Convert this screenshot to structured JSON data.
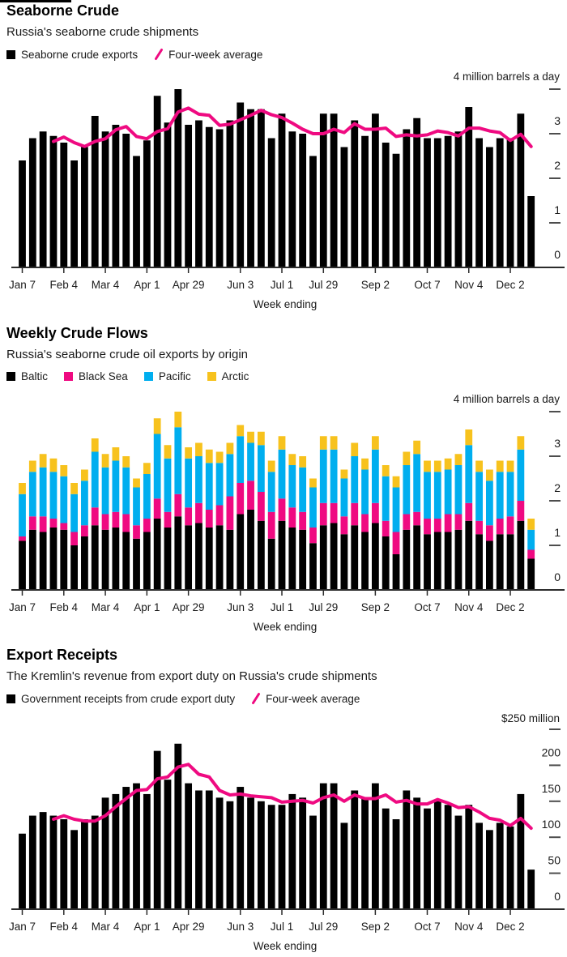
{
  "colors": {
    "bar_black": "#000000",
    "pink": "#ef0a81",
    "blue": "#00aeef",
    "yellow": "#f7c21d",
    "axis_line": "#2b2b2b",
    "tick_dash": "#4d4d4d",
    "text": "#1a1a1a"
  },
  "xaxis": {
    "title": "Week ending",
    "n_weeks": 50,
    "tick_labels": [
      {
        "week": 1,
        "label": "Jan 7"
      },
      {
        "week": 5,
        "label": "Feb 4"
      },
      {
        "week": 9,
        "label": "Mar 4"
      },
      {
        "week": 13,
        "label": "Apr 1"
      },
      {
        "week": 17,
        "label": "Apr 29"
      },
      {
        "week": 22,
        "label": "Jun 3"
      },
      {
        "week": 26,
        "label": "Jul 1"
      },
      {
        "week": 30,
        "label": "Jul 29"
      },
      {
        "week": 35,
        "label": "Sep 2"
      },
      {
        "week": 40,
        "label": "Oct 7"
      },
      {
        "week": 44,
        "label": "Nov 4"
      },
      {
        "week": 48,
        "label": "Dec 2"
      }
    ]
  },
  "chart_data": [
    {
      "id": "seaborne-crude",
      "type": "bar",
      "title": "Seaborne Crude",
      "subtitle": "Russia's seaborne crude shipments",
      "unit_label": "4 million barrels a day",
      "xlabel": "Week ending",
      "ylim": [
        0,
        4
      ],
      "yticks": [
        0,
        1,
        2,
        3
      ],
      "legend": [
        {
          "label": "Seaborne crude exports",
          "swatch": "square",
          "color": "#000000"
        },
        {
          "label": "Four-week average",
          "swatch": "slash",
          "color": "#ef0a81"
        }
      ],
      "values": [
        2.4,
        2.9,
        3.05,
        2.95,
        2.8,
        2.4,
        2.7,
        3.4,
        3.05,
        3.2,
        3.0,
        2.5,
        2.85,
        3.85,
        3.25,
        4.0,
        3.2,
        3.3,
        3.15,
        3.1,
        3.3,
        3.7,
        3.55,
        3.55,
        2.9,
        3.45,
        3.05,
        3.0,
        2.5,
        3.45,
        3.45,
        2.7,
        3.3,
        2.95,
        3.45,
        2.8,
        2.55,
        3.1,
        3.35,
        2.9,
        2.9,
        2.95,
        3.05,
        3.6,
        2.9,
        2.7,
        2.9,
        2.9,
        3.45,
        1.6
      ],
      "average_line": {
        "name": "Four-week average",
        "window_weeks": 4,
        "derivation": "trailing mean of values"
      }
    },
    {
      "id": "weekly-crude-flows",
      "type": "stacked-bar",
      "title": "Weekly Crude Flows",
      "subtitle": "Russia's seaborne crude oil exports by origin",
      "unit_label": "4 million barrels a day",
      "xlabel": "Week ending",
      "ylim": [
        0,
        4
      ],
      "yticks": [
        0,
        1,
        2,
        3
      ],
      "legend": [
        {
          "label": "Baltic",
          "swatch": "square",
          "color": "#000000"
        },
        {
          "label": "Black Sea",
          "swatch": "square",
          "color": "#ef0a81"
        },
        {
          "label": "Pacific",
          "swatch": "square",
          "color": "#00aeef"
        },
        {
          "label": "Arctic",
          "swatch": "square",
          "color": "#f7c21d"
        }
      ],
      "series": [
        {
          "name": "Baltic",
          "color": "#000000",
          "values": [
            1.1,
            1.35,
            1.3,
            1.4,
            1.35,
            1.0,
            1.2,
            1.45,
            1.35,
            1.4,
            1.3,
            1.15,
            1.3,
            1.6,
            1.4,
            1.65,
            1.45,
            1.5,
            1.4,
            1.45,
            1.35,
            1.7,
            1.8,
            1.55,
            1.15,
            1.55,
            1.4,
            1.35,
            1.05,
            1.45,
            1.5,
            1.25,
            1.45,
            1.3,
            1.5,
            1.2,
            0.8,
            1.35,
            1.45,
            1.25,
            1.3,
            1.3,
            1.35,
            1.55,
            1.25,
            1.1,
            1.25,
            1.25,
            1.55,
            0.7
          ]
        },
        {
          "name": "Black Sea",
          "color": "#ef0a81",
          "values": [
            0.1,
            0.3,
            0.35,
            0.2,
            0.15,
            0.3,
            0.25,
            0.4,
            0.35,
            0.35,
            0.4,
            0.3,
            0.3,
            0.45,
            0.35,
            0.5,
            0.4,
            0.45,
            0.4,
            0.45,
            0.75,
            0.7,
            0.65,
            0.65,
            0.6,
            0.5,
            0.45,
            0.4,
            0.35,
            0.5,
            0.45,
            0.4,
            0.5,
            0.4,
            0.45,
            0.35,
            0.5,
            0.35,
            0.3,
            0.35,
            0.3,
            0.4,
            0.35,
            0.4,
            0.3,
            0.35,
            0.35,
            0.4,
            0.45,
            0.2
          ]
        },
        {
          "name": "Pacific",
          "color": "#00aeef",
          "values": [
            0.95,
            1.0,
            1.1,
            1.05,
            1.05,
            0.85,
            1.0,
            1.25,
            1.05,
            1.15,
            1.05,
            0.85,
            1.0,
            1.45,
            1.2,
            1.5,
            1.1,
            1.05,
            1.05,
            0.95,
            0.95,
            1.05,
            0.85,
            1.05,
            0.9,
            1.1,
            0.95,
            1.0,
            0.9,
            1.2,
            1.2,
            0.85,
            1.05,
            1.0,
            1.2,
            1.0,
            1.0,
            1.1,
            1.3,
            1.05,
            1.05,
            1.0,
            1.1,
            1.3,
            1.1,
            1.0,
            1.05,
            1.0,
            1.15,
            0.45
          ]
        },
        {
          "name": "Arctic",
          "color": "#f7c21d",
          "values": [
            0.25,
            0.25,
            0.3,
            0.3,
            0.25,
            0.25,
            0.25,
            0.3,
            0.3,
            0.3,
            0.25,
            0.2,
            0.25,
            0.35,
            0.3,
            0.35,
            0.25,
            0.3,
            0.3,
            0.25,
            0.25,
            0.25,
            0.25,
            0.3,
            0.25,
            0.3,
            0.25,
            0.25,
            0.2,
            0.3,
            0.3,
            0.2,
            0.3,
            0.25,
            0.3,
            0.25,
            0.25,
            0.3,
            0.3,
            0.25,
            0.25,
            0.25,
            0.25,
            0.35,
            0.25,
            0.25,
            0.25,
            0.25,
            0.3,
            0.25
          ]
        }
      ]
    },
    {
      "id": "export-receipts",
      "type": "bar",
      "title": "Export Receipts",
      "subtitle": "The Kremlin's revenue from export duty on Russia's crude shipments",
      "unit_label": "$250 million",
      "xlabel": "Week ending",
      "ylim": [
        0,
        250
      ],
      "yticks": [
        0,
        50,
        100,
        150,
        200
      ],
      "legend": [
        {
          "label": "Government receipts from crude export duty",
          "swatch": "square",
          "color": "#000000"
        },
        {
          "label": "Four-week average",
          "swatch": "slash",
          "color": "#ef0a81"
        }
      ],
      "values": [
        105,
        130,
        135,
        130,
        125,
        110,
        125,
        130,
        155,
        160,
        170,
        175,
        160,
        220,
        180,
        230,
        175,
        165,
        165,
        155,
        150,
        170,
        155,
        150,
        145,
        145,
        160,
        155,
        130,
        175,
        175,
        120,
        165,
        155,
        175,
        140,
        125,
        165,
        155,
        140,
        150,
        145,
        130,
        145,
        120,
        110,
        120,
        115,
        160,
        55
      ],
      "average_line": {
        "name": "Four-week average",
        "window_weeks": 4,
        "derivation": "trailing mean of values"
      }
    }
  ]
}
